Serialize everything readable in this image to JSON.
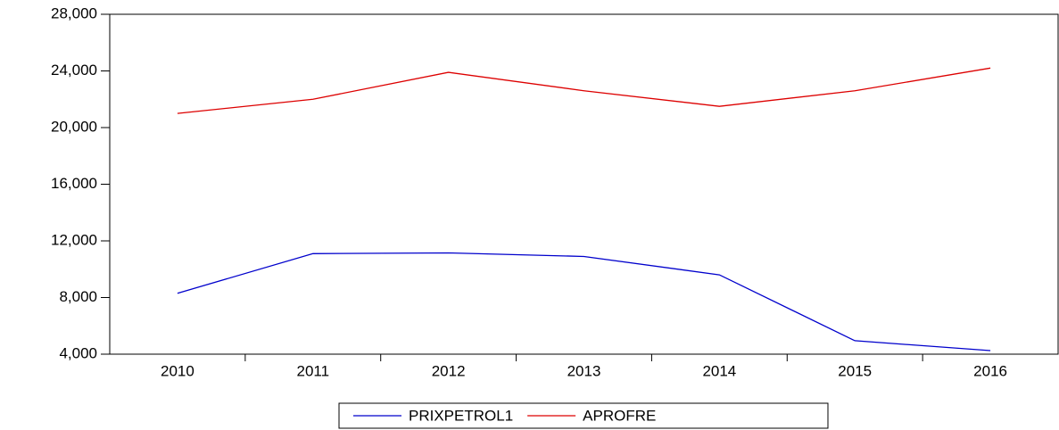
{
  "chart_data": {
    "type": "line",
    "categories": [
      "2010",
      "2011",
      "2012",
      "2013",
      "2014",
      "2015",
      "2016"
    ],
    "series": [
      {
        "name": "PRIXPETROL1",
        "color": "#0000cc",
        "values": [
          8300,
          11100,
          11150,
          10900,
          9600,
          4950,
          4250
        ]
      },
      {
        "name": "APROFRE",
        "color": "#dd0000",
        "values": [
          21000,
          22000,
          23900,
          22600,
          21500,
          22600,
          24200
        ]
      }
    ],
    "ylim": [
      4000,
      28000
    ],
    "yticks": [
      {
        "value": 4000,
        "label": "4,000"
      },
      {
        "value": 8000,
        "label": "8,000"
      },
      {
        "value": 12000,
        "label": "12,000"
      },
      {
        "value": 16000,
        "label": "16,000"
      },
      {
        "value": 20000,
        "label": "20,000"
      },
      {
        "value": 24000,
        "label": "24,000"
      },
      {
        "value": 28000,
        "label": "28,000"
      }
    ],
    "legend": "bottom"
  }
}
